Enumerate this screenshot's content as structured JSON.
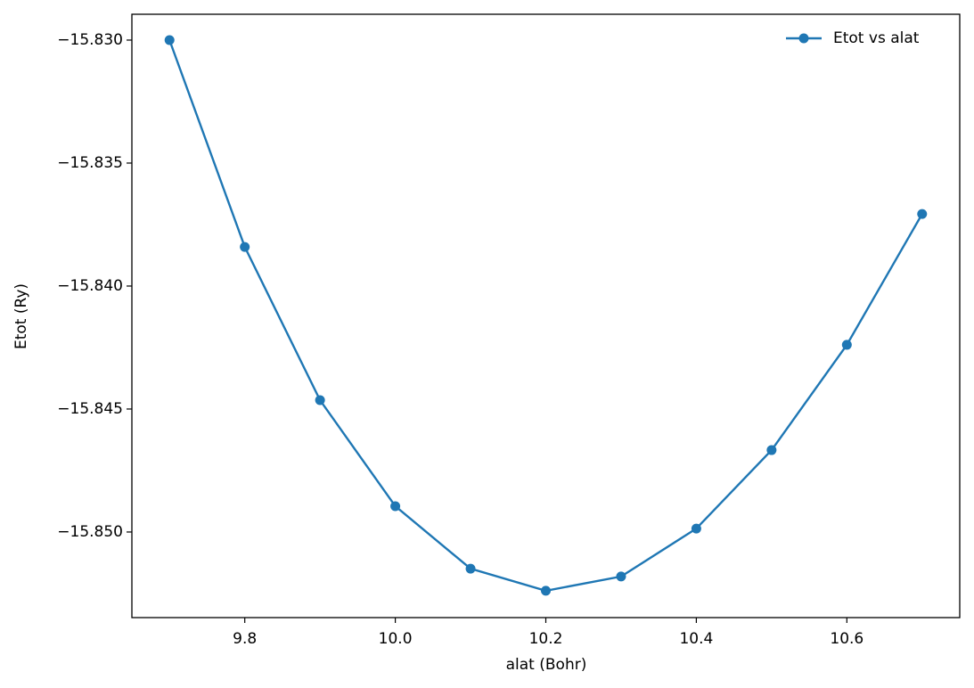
{
  "chart_data": {
    "type": "line",
    "x_label": "alat (Bohr)",
    "y_label": "Etot (Ry)",
    "x": [
      9.7,
      9.8,
      9.9,
      10.0,
      10.1,
      10.2,
      10.3,
      10.4,
      10.5,
      10.6,
      10.7
    ],
    "series": [
      {
        "name": "Etot vs alat",
        "color": "#1f77b4",
        "values": [
          -15.83,
          -15.83841,
          -15.84464,
          -15.84895,
          -15.85149,
          -15.85239,
          -15.85181,
          -15.84986,
          -15.84667,
          -15.84239,
          -15.83707
        ]
      }
    ],
    "xlim": [
      9.65,
      10.75
    ],
    "xticks": [
      9.8,
      {
        "value": 10.0,
        "label": "10.0"
      },
      10.2,
      10.4,
      10.6
    ],
    "ylim": [
      -15.85348,
      -15.82895
    ],
    "yticks": [
      {
        "value": -15.83,
        "label": "−15.830"
      },
      {
        "value": -15.835,
        "label": "−15.835"
      },
      {
        "value": -15.84,
        "label": "−15.840"
      },
      {
        "value": -15.845,
        "label": "−15.845"
      },
      {
        "value": -15.85,
        "label": "−15.850"
      }
    ],
    "legend": "upper right",
    "grid": false
  }
}
